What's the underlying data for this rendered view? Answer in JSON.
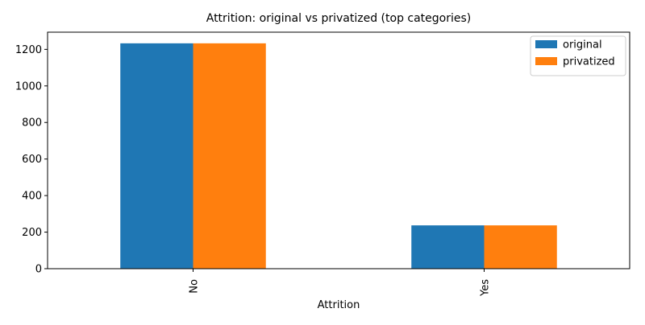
{
  "chart_data": {
    "type": "bar",
    "title": "Attrition: original vs privatized (top categories)",
    "xlabel": "Attrition",
    "ylabel": "",
    "categories": [
      "No",
      "Yes"
    ],
    "series": [
      {
        "name": "original",
        "values": [
          1233,
          237
        ],
        "color": "#1f77b4"
      },
      {
        "name": "privatized",
        "values": [
          1233,
          237
        ],
        "color": "#ff7f0e"
      }
    ],
    "ylim": [
      0,
      1294
    ],
    "yticks": [
      0,
      200,
      400,
      600,
      800,
      1000,
      1200
    ],
    "grid": false,
    "legend_position": "top-right",
    "x_tick_rotation": "vertical"
  }
}
